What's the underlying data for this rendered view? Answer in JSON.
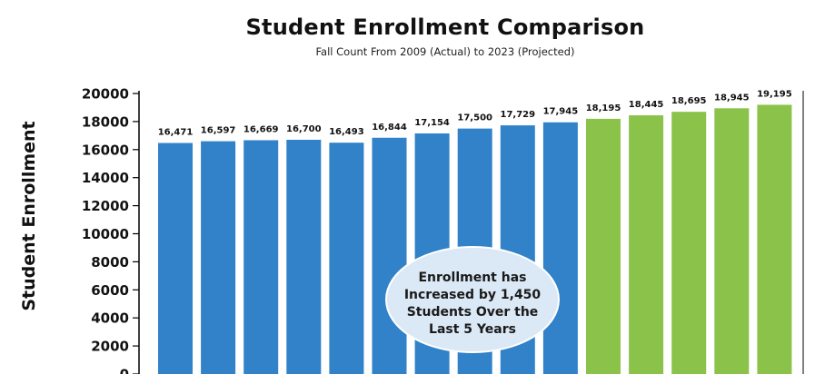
{
  "chart_data": {
    "type": "bar",
    "title": "Student Enrollment Comparison",
    "subtitle": "Fall Count From 2009 (Actual) to 2023 (Projected)",
    "xlabel": "",
    "ylabel": "Student Enrollment",
    "ylim": [
      0,
      20000
    ],
    "yticks": [
      0,
      2000,
      4000,
      6000,
      8000,
      10000,
      12000,
      14000,
      16000,
      18000,
      20000
    ],
    "yticklabels": [
      "0",
      "2000",
      "4000",
      "6000",
      "8000",
      "10000",
      "12000",
      "14000",
      "16000",
      "18000",
      "20000"
    ],
    "grid": false,
    "legend": "none",
    "values": [
      16471,
      16597,
      16669,
      16700,
      16493,
      16844,
      17154,
      17500,
      17729,
      17945,
      18195,
      18445,
      18695,
      18945,
      19195
    ],
    "value_labels": [
      "16,471",
      "16,597",
      "16,669",
      "16,700",
      "16,493",
      "16,844",
      "17,154",
      "17,500",
      "17,729",
      "17,945",
      "18,195",
      "18,445",
      "18,695",
      "18,945",
      "19,195"
    ],
    "bar_kind": [
      "actual",
      "actual",
      "actual",
      "actual",
      "actual",
      "actual",
      "actual",
      "actual",
      "actual",
      "actual",
      "projected",
      "projected",
      "projected",
      "projected",
      "projected"
    ],
    "colors": {
      "actual": "#3182c8",
      "projected": "#8bc34a"
    },
    "annotation": {
      "lines": [
        "Enrollment has",
        "Increased by 1,450",
        "Students Over the",
        "Last 5 Years"
      ],
      "fill": "#dbe8f5"
    }
  }
}
